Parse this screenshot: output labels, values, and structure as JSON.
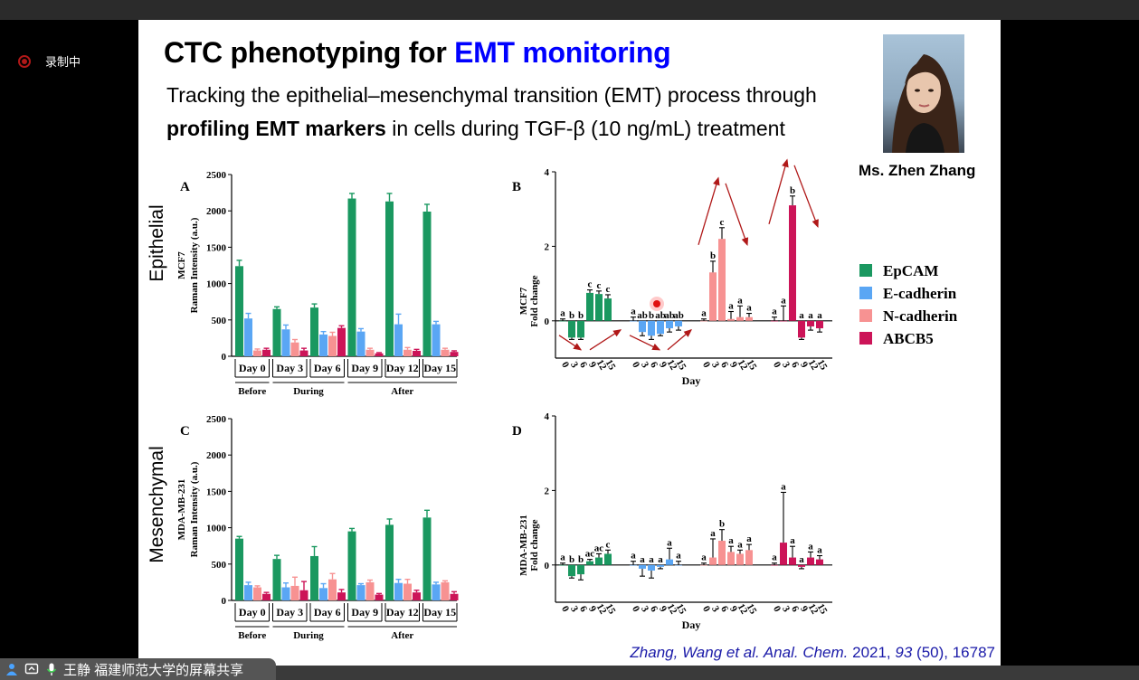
{
  "recording": {
    "label": "录制中"
  },
  "slide": {
    "title_plain": "CTC phenotyping for ",
    "title_accent": "EMT monitoring",
    "subtitle_line1": "Tracking the epithelial–mesenchymal transition (EMT) process through",
    "subtitle_bold": "profiling EMT markers",
    "subtitle_rest": " in cells during TGF-β (10 ng/mL) treatment",
    "presenter_name": "Ms. Zhen Zhang",
    "citation": {
      "authors": "Zhang, Wang et al. Anal. Chem.",
      "year": " 2021, ",
      "volume": "93",
      "issue_pages": " (50), 16787"
    },
    "row_labels": [
      "Epithelial",
      "Mesenchymal"
    ]
  },
  "chart_data": [
    {
      "id": "A",
      "panel_label": "A",
      "type": "bar",
      "ylabel_lines": [
        "MCF7",
        "Raman Intensity (a.u.)"
      ],
      "ylim": [
        0,
        2500
      ],
      "yticks": [
        0,
        500,
        1000,
        1500,
        2000,
        2500
      ],
      "categories": [
        "Day 0",
        "Day 3",
        "Day 6",
        "Day 9",
        "Day 12",
        "Day 15"
      ],
      "groups": [
        {
          "label": "Before",
          "from": 0,
          "to": 0
        },
        {
          "label": "During",
          "from": 1,
          "to": 2
        },
        {
          "label": "After",
          "from": 3,
          "to": 5
        }
      ],
      "series": [
        {
          "name": "EpCAM",
          "values": [
            1240,
            650,
            670,
            2170,
            2130,
            1990
          ],
          "errors": [
            80,
            30,
            50,
            70,
            110,
            100
          ]
        },
        {
          "name": "E-cadherin",
          "values": [
            520,
            370,
            300,
            340,
            440,
            440
          ],
          "errors": [
            70,
            60,
            40,
            40,
            140,
            40
          ]
        },
        {
          "name": "N-cadherin",
          "values": [
            80,
            190,
            280,
            90,
            90,
            90
          ],
          "errors": [
            20,
            40,
            50,
            20,
            30,
            20
          ]
        },
        {
          "name": "ABCB5",
          "values": [
            90,
            80,
            390,
            40,
            75,
            60
          ],
          "errors": [
            20,
            30,
            30,
            10,
            20,
            15
          ]
        }
      ]
    },
    {
      "id": "B",
      "panel_label": "B",
      "type": "bar",
      "ylabel_lines": [
        "MCF7",
        "Fold change"
      ],
      "xlabel": "Day",
      "ylim": [
        -1,
        4
      ],
      "yticks": [
        0,
        2,
        4
      ],
      "day_ticks": [
        "0",
        "3",
        "6",
        "9",
        "12",
        "15"
      ],
      "series": [
        {
          "name": "EpCAM",
          "values": [
            0,
            -0.45,
            -0.45,
            0.75,
            0.72,
            0.6
          ],
          "errors": [
            0.05,
            0.05,
            0.05,
            0.08,
            0.08,
            0.1
          ],
          "letters": [
            "a",
            "b",
            "b",
            "c",
            "c",
            "c"
          ]
        },
        {
          "name": "E-cadherin",
          "values": [
            0,
            -0.3,
            -0.4,
            -0.35,
            -0.2,
            -0.15
          ],
          "errors": [
            0.1,
            0.1,
            0.1,
            0.05,
            0.1,
            0.1
          ],
          "letters": [
            "a",
            "ab",
            "b",
            "ab",
            "ab",
            "ab"
          ]
        },
        {
          "name": "N-cadherin",
          "values": [
            0,
            1.3,
            2.2,
            0.05,
            0.1,
            0.1
          ],
          "errors": [
            0.05,
            0.3,
            0.3,
            0.2,
            0.3,
            0.1
          ],
          "letters": [
            "a",
            "b",
            "c",
            "a",
            "a",
            "a"
          ]
        },
        {
          "name": "ABCB5",
          "values": [
            0,
            0,
            3.1,
            -0.45,
            -0.15,
            -0.2
          ],
          "errors": [
            0.1,
            0.4,
            0.25,
            0.05,
            0.1,
            0.1
          ],
          "letters": [
            "a",
            "a",
            "b",
            "a",
            "a",
            "a"
          ]
        }
      ]
    },
    {
      "id": "C",
      "panel_label": "C",
      "type": "bar",
      "ylabel_lines": [
        "MDA-MB-231",
        "Raman Intensity (a.u.)"
      ],
      "ylim": [
        0,
        2500
      ],
      "yticks": [
        0,
        500,
        1000,
        1500,
        2000,
        2500
      ],
      "categories": [
        "Day 0",
        "Day 3",
        "Day 6",
        "Day 9",
        "Day 12",
        "Day 15"
      ],
      "groups": [
        {
          "label": "Before",
          "from": 0,
          "to": 0
        },
        {
          "label": "During",
          "from": 1,
          "to": 2
        },
        {
          "label": "After",
          "from": 3,
          "to": 5
        }
      ],
      "series": [
        {
          "name": "EpCAM",
          "values": [
            850,
            570,
            610,
            950,
            1040,
            1140
          ],
          "errors": [
            30,
            50,
            130,
            40,
            80,
            100
          ]
        },
        {
          "name": "E-cadherin",
          "values": [
            210,
            180,
            170,
            210,
            240,
            220
          ],
          "errors": [
            40,
            60,
            60,
            20,
            50,
            30
          ]
        },
        {
          "name": "N-cadherin",
          "values": [
            180,
            200,
            290,
            250,
            230,
            250
          ],
          "errors": [
            20,
            120,
            80,
            30,
            60,
            20
          ]
        },
        {
          "name": "ABCB5",
          "values": [
            90,
            140,
            110,
            80,
            110,
            90
          ],
          "errors": [
            20,
            120,
            40,
            15,
            30,
            30
          ]
        }
      ]
    },
    {
      "id": "D",
      "panel_label": "D",
      "type": "bar",
      "ylabel_lines": [
        "MDA-MB-231",
        "Fold change"
      ],
      "xlabel": "Day",
      "ylim": [
        -1,
        4
      ],
      "yticks": [
        0,
        2,
        4
      ],
      "day_ticks": [
        "0",
        "3",
        "6",
        "9",
        "12",
        "15"
      ],
      "series": [
        {
          "name": "EpCAM",
          "values": [
            0,
            -0.3,
            -0.25,
            0.1,
            0.2,
            0.3
          ],
          "errors": [
            0.05,
            0.05,
            0.15,
            0.05,
            0.1,
            0.1
          ],
          "letters": [
            "a",
            "b",
            "b",
            "ac",
            "ac",
            "c"
          ]
        },
        {
          "name": "E-cadherin",
          "values": [
            0,
            -0.1,
            -0.15,
            -0.05,
            0.15,
            0
          ],
          "errors": [
            0.1,
            0.2,
            0.2,
            0.05,
            0.3,
            0.1
          ],
          "letters": [
            "a",
            "a",
            "a",
            "a",
            "a",
            "a"
          ]
        },
        {
          "name": "N-cadherin",
          "values": [
            0,
            0.2,
            0.65,
            0.35,
            0.3,
            0.4
          ],
          "errors": [
            0.05,
            0.5,
            0.3,
            0.15,
            0.1,
            0.15
          ],
          "letters": [
            "a",
            "a",
            "b",
            "a",
            "a",
            "a"
          ]
        },
        {
          "name": "ABCB5",
          "values": [
            0,
            0.6,
            0.2,
            -0.05,
            0.2,
            0.15
          ],
          "errors": [
            0.05,
            1.35,
            0.3,
            0.05,
            0.15,
            0.1
          ],
          "letters": [
            "a",
            "a",
            "a",
            "a",
            "a",
            "a"
          ]
        }
      ]
    }
  ],
  "legend": {
    "items": [
      {
        "name": "EpCAM",
        "color": "#1a9860"
      },
      {
        "name": "E-cadherin",
        "color": "#5aa6f4"
      },
      {
        "name": "N-cadherin",
        "color": "#f79292"
      },
      {
        "name": "ABCB5",
        "color": "#cc1458"
      }
    ]
  },
  "colors": {
    "arrow": "#b01818",
    "axis": "#000000",
    "accent": "#0000ff"
  },
  "share_bar": {
    "text": "王静 福建师范大学的屏幕共享",
    "icons": [
      "person-icon",
      "screen-share-icon",
      "microphone-icon"
    ]
  }
}
